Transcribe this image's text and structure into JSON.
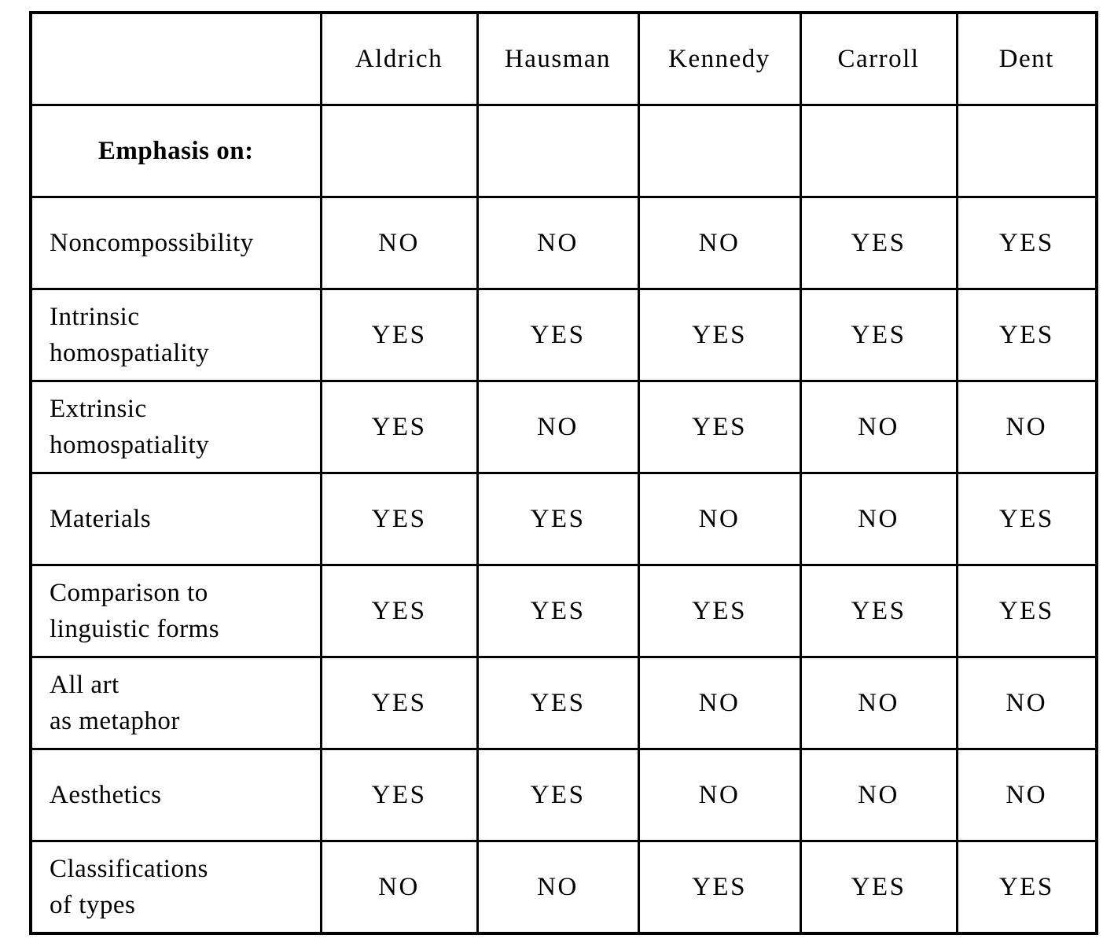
{
  "page": {
    "background_color": "#ffffff",
    "border_color": "#000000"
  },
  "table": {
    "columns": [
      "",
      "Aldrich",
      "Hausman",
      "Kennedy",
      "Carroll",
      "Dent"
    ],
    "section_header": "Emphasis on:",
    "rows": [
      {
        "label_lines": [
          "Noncompossibility"
        ],
        "values": [
          "NO",
          "NO",
          "NO",
          "YES",
          "YES"
        ]
      },
      {
        "label_lines": [
          "Intrinsic",
          "homospatiality"
        ],
        "values": [
          "YES",
          "YES",
          "YES",
          "YES",
          "YES"
        ]
      },
      {
        "label_lines": [
          "Extrinsic",
          "homospatiality"
        ],
        "values": [
          "YES",
          "NO",
          "YES",
          "NO",
          "NO"
        ]
      },
      {
        "label_lines": [
          "Materials"
        ],
        "values": [
          "YES",
          "YES",
          "NO",
          "NO",
          "YES"
        ]
      },
      {
        "label_lines": [
          "Comparison to",
          "linguistic forms"
        ],
        "values": [
          "YES",
          "YES",
          "YES",
          "YES",
          "YES"
        ]
      },
      {
        "label_lines": [
          "All art",
          "as metaphor"
        ],
        "values": [
          "YES",
          "YES",
          "NO",
          "NO",
          "NO"
        ]
      },
      {
        "label_lines": [
          "Aesthetics"
        ],
        "values": [
          "YES",
          "YES",
          "NO",
          "NO",
          "NO"
        ]
      },
      {
        "label_lines": [
          "Classifications",
          "of types"
        ],
        "values": [
          "NO",
          "NO",
          "YES",
          "YES",
          "YES"
        ]
      }
    ]
  }
}
